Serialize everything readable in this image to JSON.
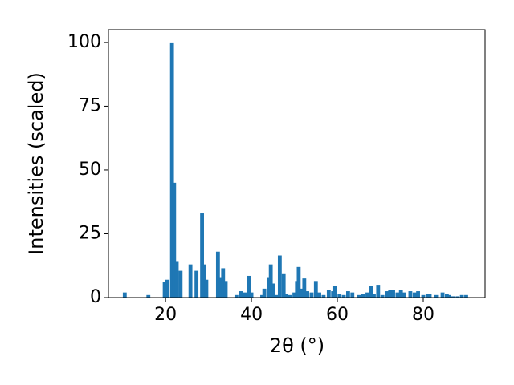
{
  "chart_data": {
    "type": "bar",
    "xlabel": "2θ (°)",
    "ylabel": "Intensities (scaled)",
    "color": "#1f77b4",
    "bar_width": 0.9,
    "x": [
      10.5,
      16,
      19.8,
      20.4,
      21.5,
      22,
      22.6,
      23.5,
      25.8,
      27.2,
      28.5,
      29,
      29.5,
      32.2,
      32.8,
      33.4,
      34,
      36.5,
      37.5,
      38.5,
      39.4,
      40,
      42.5,
      43,
      44,
      44.5,
      45,
      46,
      46.6,
      47.5,
      48,
      49,
      50,
      50.6,
      51,
      51.6,
      52.3,
      53,
      54,
      55,
      55.8,
      56.8,
      58,
      59,
      59.5,
      60.5,
      61.5,
      62.5,
      63.5,
      65,
      66,
      67,
      67.8,
      68.5,
      69.5,
      70.5,
      71.5,
      72.3,
      73,
      74,
      74.8,
      75.5,
      77,
      78,
      78.8,
      80,
      81,
      81.5,
      83,
      84.5,
      85.5,
      86,
      87,
      88,
      89,
      90
    ],
    "values": [
      2,
      1,
      6,
      7,
      100,
      45,
      14,
      10.5,
      13,
      10.5,
      33,
      13,
      7,
      18,
      8,
      11.5,
      6.5,
      1,
      2.5,
      2,
      8.5,
      2,
      1,
      3.5,
      8,
      13,
      5.5,
      1,
      16.5,
      9.5,
      1.5,
      1,
      2,
      6.5,
      12,
      3.5,
      7.5,
      2.5,
      2,
      6.5,
      2,
      1,
      3,
      2.5,
      4.5,
      1.5,
      1,
      2.5,
      2,
      1,
      1.5,
      2,
      4.5,
      1.5,
      5,
      1,
      2.5,
      3,
      3,
      2,
      3,
      2,
      2.5,
      2,
      2.5,
      1,
      1.5,
      1.5,
      1,
      2,
      1.5,
      1,
      0.5,
      0.5,
      1,
      1
    ],
    "xlim": [
      6.7,
      94.4
    ],
    "ylim": [
      0,
      105
    ],
    "xticks": [
      20,
      40,
      60,
      80
    ],
    "yticks": [
      0,
      25,
      50,
      75,
      100
    ]
  }
}
